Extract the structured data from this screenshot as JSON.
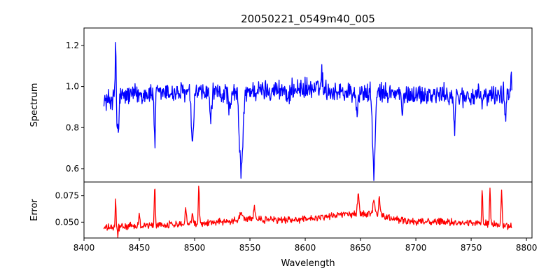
{
  "chart_data": [
    {
      "type": "line",
      "title": "20050221_0549m40_005",
      "xlabel": "",
      "ylabel": "Spectrum",
      "xlim": [
        8400,
        8805
      ],
      "ylim": [
        0.535,
        1.285
      ],
      "xticks": [],
      "yticks": [
        0.6,
        0.8,
        1.0,
        1.2
      ],
      "yticklabels": [
        "0.6",
        "0.8",
        "1.0",
        "1.2"
      ],
      "grid": false,
      "series": [
        {
          "color": "#0000ff",
          "x_start": 8418,
          "x_end": 8787,
          "baseline": [
            [
              8418,
              0.93
            ],
            [
              8440,
              0.96
            ],
            [
              8480,
              0.97
            ],
            [
              8520,
              0.965
            ],
            [
              8560,
              0.98
            ],
            [
              8600,
              0.99
            ],
            [
              8640,
              0.97
            ],
            [
              8680,
              0.965
            ],
            [
              8720,
              0.96
            ],
            [
              8760,
              0.95
            ],
            [
              8787,
              0.97
            ]
          ],
          "features": [
            {
              "x": 8428.6,
              "depth": 0.3,
              "width": 0.35
            },
            {
              "x": 8430.0,
              "depth": -0.16,
              "width": 0.4
            },
            {
              "x": 8431.2,
              "depth": -0.2,
              "width": 0.4
            },
            {
              "x": 8464.0,
              "depth": -0.27,
              "width": 0.5
            },
            {
              "x": 8498.0,
              "depth": -0.28,
              "width": 0.9
            },
            {
              "x": 8514.5,
              "depth": -0.12,
              "width": 0.8
            },
            {
              "x": 8542.1,
              "depth": -0.38,
              "width": 1.6
            },
            {
              "x": 8532.0,
              "depth": -0.1,
              "width": 1.0
            },
            {
              "x": 8585.0,
              "depth": -0.06,
              "width": 1.2
            },
            {
              "x": 8615.0,
              "depth": 0.08,
              "width": 0.8
            },
            {
              "x": 8647.0,
              "depth": -0.08,
              "width": 1.0
            },
            {
              "x": 8662.1,
              "depth": -0.38,
              "width": 1.2
            },
            {
              "x": 8688.0,
              "depth": -0.1,
              "width": 0.8
            },
            {
              "x": 8735.0,
              "depth": -0.16,
              "width": 0.8
            },
            {
              "x": 8781.0,
              "depth": -0.12,
              "width": 0.6
            },
            {
              "x": 8786.0,
              "depth": 0.12,
              "width": 0.4
            }
          ],
          "noise": 0.045
        }
      ]
    },
    {
      "type": "line",
      "title": "",
      "xlabel": "Wavelength",
      "ylabel": "Error",
      "xlim": [
        8400,
        8805
      ],
      "ylim": [
        0.035,
        0.088
      ],
      "xticks": [
        8400,
        8450,
        8500,
        8550,
        8600,
        8650,
        8700,
        8750,
        8800
      ],
      "xticklabels": [
        "8400",
        "8450",
        "8500",
        "8550",
        "8600",
        "8650",
        "8700",
        "8750",
        "8800"
      ],
      "yticks": [
        0.05,
        0.075
      ],
      "yticklabels": [
        "0.050",
        "0.075"
      ],
      "grid": false,
      "series": [
        {
          "color": "#ff0000",
          "x_start": 8418,
          "x_end": 8787,
          "baseline": [
            [
              8418,
              0.0445
            ],
            [
              8440,
              0.046
            ],
            [
              8480,
              0.048
            ],
            [
              8520,
              0.05
            ],
            [
              8550,
              0.053
            ],
            [
              8580,
              0.052
            ],
            [
              8600,
              0.053
            ],
            [
              8630,
              0.057
            ],
            [
              8660,
              0.058
            ],
            [
              8690,
              0.051
            ],
            [
              8730,
              0.05
            ],
            [
              8760,
              0.049
            ],
            [
              8787,
              0.046
            ]
          ],
          "features": [
            {
              "x": 8428.6,
              "depth": 0.026,
              "width": 0.35
            },
            {
              "x": 8430.5,
              "depth": -0.009,
              "width": 0.3
            },
            {
              "x": 8450.0,
              "depth": 0.012,
              "width": 0.5
            },
            {
              "x": 8464.0,
              "depth": 0.038,
              "width": 0.45
            },
            {
              "x": 8492.0,
              "depth": 0.017,
              "width": 0.5
            },
            {
              "x": 8498.0,
              "depth": 0.01,
              "width": 0.5
            },
            {
              "x": 8503.8,
              "depth": 0.037,
              "width": 0.45
            },
            {
              "x": 8542.0,
              "depth": 0.008,
              "width": 1.2
            },
            {
              "x": 8554.0,
              "depth": 0.014,
              "width": 0.5
            },
            {
              "x": 8648.0,
              "depth": 0.018,
              "width": 0.8
            },
            {
              "x": 8662.0,
              "depth": 0.014,
              "width": 0.8
            },
            {
              "x": 8667.0,
              "depth": 0.016,
              "width": 0.6
            },
            {
              "x": 8760.0,
              "depth": 0.03,
              "width": 0.45
            },
            {
              "x": 8767.0,
              "depth": 0.035,
              "width": 0.45
            },
            {
              "x": 8777.5,
              "depth": 0.036,
              "width": 0.45
            },
            {
              "x": 8787.0,
              "depth": -0.003,
              "width": 0.5
            }
          ],
          "noise": 0.0028
        }
      ]
    }
  ]
}
